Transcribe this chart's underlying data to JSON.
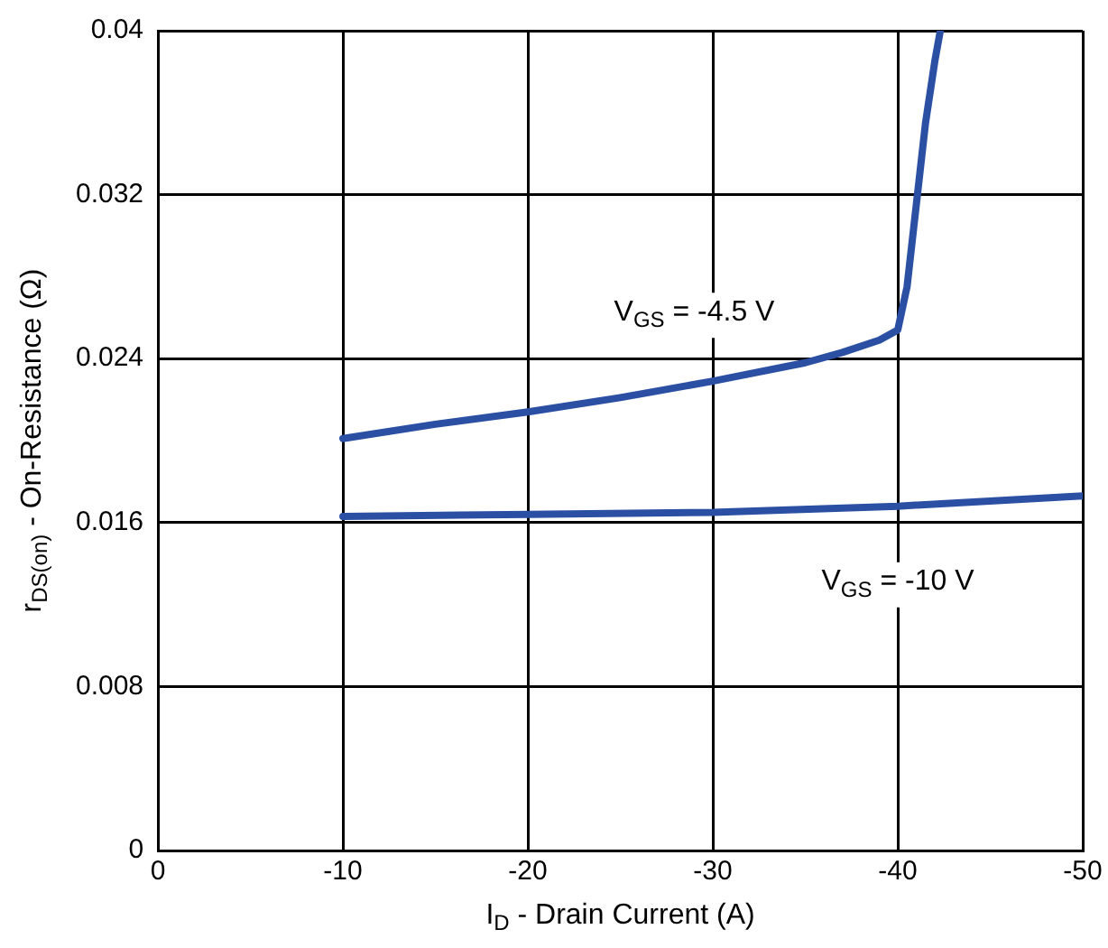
{
  "chart_data": {
    "type": "line",
    "xlabel": "I$_{D}$ - Drain Current (A)",
    "ylabel": "r$_{DS(on)}$ - On-Resistance (Ω)",
    "xlim": [
      0,
      -50
    ],
    "xticks": [
      0,
      -10,
      -20,
      -30,
      -40,
      -50
    ],
    "ylim": [
      0,
      0.04
    ],
    "yticks": [
      {
        "value": 0,
        "label": "0"
      },
      {
        "value": 0.008,
        "label": "0.008"
      },
      {
        "value": 0.016,
        "label": "0.016"
      },
      {
        "value": 0.024,
        "label": "0.024"
      },
      {
        "value": 0.032,
        "label": "0.032"
      },
      {
        "value": 0.04,
        "label": "0.04"
      }
    ],
    "grid": true,
    "legend": false,
    "marker": "none",
    "line_style": "solid",
    "series": [
      {
        "name": "V$_{GS}$ = -4.5 V",
        "color": "#2b50a3",
        "x": [
          -10,
          -15,
          -20,
          -25,
          -30,
          -35,
          -37,
          -39,
          -40,
          -40.5,
          -41,
          -41.5,
          -42,
          -42.3
        ],
        "values": [
          0.0201,
          0.0208,
          0.0214,
          0.0221,
          0.0229,
          0.0238,
          0.0243,
          0.0249,
          0.0254,
          0.0275,
          0.0315,
          0.0355,
          0.0385,
          0.04
        ]
      },
      {
        "name": "V$_{GS}$ = -10 V",
        "color": "#2b50a3",
        "x": [
          -10,
          -20,
          -30,
          -40,
          -50
        ],
        "values": [
          0.0163,
          0.0164,
          0.0165,
          0.0168,
          0.0173
        ]
      }
    ]
  }
}
